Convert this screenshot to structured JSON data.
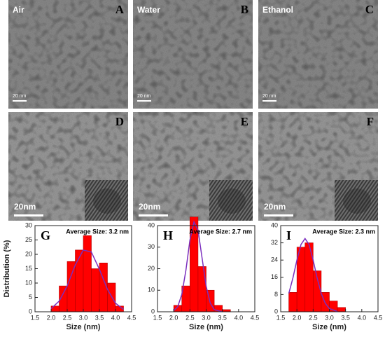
{
  "panels": [
    {
      "label": "Air",
      "letter": "A",
      "scale_bar": "20 nm"
    },
    {
      "label": "Water",
      "letter": "B",
      "scale_bar": "20 nm"
    },
    {
      "label": "Ethanol",
      "letter": "C",
      "scale_bar": "20 nm"
    },
    {
      "letter": "D",
      "scale_bar": "20nm"
    },
    {
      "letter": "E",
      "scale_bar": "20nm"
    },
    {
      "letter": "F",
      "scale_bar": "20nm"
    }
  ],
  "chart_data": [
    {
      "type": "histogram",
      "letter": "G",
      "annotation": "Average Size: 3.2 nm",
      "x_label": "Size (nm)",
      "y_label": "Distribution (%)",
      "bins": [
        2.0,
        2.25,
        2.5,
        2.75,
        3.0,
        3.25,
        3.5,
        3.75,
        4.0,
        4.25
      ],
      "values": [
        2,
        9,
        17.5,
        21.5,
        26.5,
        15,
        17,
        10,
        2
      ],
      "color": "#ff0000",
      "curve": {
        "x": [
          2.0,
          2.25,
          2.5,
          2.75,
          3.0,
          3.25,
          3.5,
          3.75,
          4.0,
          4.25
        ],
        "values": [
          1.1,
          3.7,
          9.0,
          16.3,
          21.5,
          20.8,
          14.8,
          7.8,
          3.0,
          0.8
        ],
        "color": "#7b2fbe"
      },
      "xlim": [
        1.5,
        4.5
      ],
      "xticks": [
        {
          "value": 1.5,
          "label": "1.5"
        },
        {
          "value": 2,
          "label": "2.0"
        },
        {
          "value": 2.5,
          "label": "2.5"
        },
        {
          "value": 3,
          "label": "3.0"
        },
        {
          "value": 3.5,
          "label": "3.5"
        },
        {
          "value": 4,
          "label": "4.0"
        },
        {
          "value": 4.5,
          "label": "4.5"
        }
      ],
      "ylim": [
        0,
        30
      ],
      "yticks": [
        0,
        5,
        10,
        15,
        20,
        25,
        30
      ]
    },
    {
      "type": "histogram",
      "letter": "H",
      "annotation": "Average Size: 2.7 nm",
      "x_label": "Size (nm)",
      "bins": [
        2.0,
        2.25,
        2.5,
        2.75,
        3.0,
        3.25,
        3.5,
        3.75
      ],
      "values": [
        3,
        12,
        44,
        21,
        10,
        3,
        1
      ],
      "color": "#ff0000",
      "curve": {
        "x": [
          2.0,
          2.125,
          2.25,
          2.375,
          2.5,
          2.625,
          2.75,
          2.875,
          3.0,
          3.125,
          3.25,
          3.5
        ],
        "values": [
          0.5,
          2.4,
          8.1,
          19.2,
          33.3,
          41.7,
          37.9,
          24.9,
          11.9,
          4.1,
          1.0,
          0
        ],
        "color": "#7b2fbe"
      },
      "xlim": [
        1.5,
        4.5
      ],
      "xticks": [
        {
          "value": 1.5,
          "label": "1.5"
        },
        {
          "value": 2,
          "label": "2.0"
        },
        {
          "value": 2.5,
          "label": "2.5"
        },
        {
          "value": 3,
          "label": "3.0"
        },
        {
          "value": 3.5,
          "label": "3.5"
        },
        {
          "value": 4,
          "label": "4.0"
        },
        {
          "value": 4.5,
          "label": "4.5"
        }
      ],
      "ylim": [
        0,
        40
      ],
      "yticks": [
        0,
        10,
        20,
        30,
        40
      ]
    },
    {
      "type": "histogram",
      "letter": "I",
      "annotation": "Average Size: 2.3 nm",
      "x_label": "Size (nm)",
      "bins": [
        1.75,
        2.0,
        2.25,
        2.5,
        2.75,
        3.0,
        3.25,
        3.5
      ],
      "values": [
        9,
        30,
        32,
        19,
        9,
        5,
        2
      ],
      "color": "#ff0000",
      "curve": {
        "x": [
          1.75,
          1.875,
          2.0,
          2.125,
          2.25,
          2.375,
          2.5,
          2.625,
          2.75,
          2.875,
          3.0,
          3.25
        ],
        "values": [
          8.5,
          15.6,
          24.0,
          31.2,
          34,
          31.2,
          24.0,
          15.6,
          8.5,
          3.9,
          1.5,
          0.1
        ],
        "color": "#7b2fbe"
      },
      "xlim": [
        1.5,
        4.5
      ],
      "xticks": [
        {
          "value": 1.5,
          "label": "1.5"
        },
        {
          "value": 2,
          "label": "2.0"
        },
        {
          "value": 2.5,
          "label": "2.5"
        },
        {
          "value": 3,
          "label": "3.0"
        },
        {
          "value": 3.5,
          "label": "3.5"
        },
        {
          "value": 4,
          "label": "4.0"
        },
        {
          "value": 4.5,
          "label": "4.5"
        }
      ],
      "ylim": [
        0,
        40
      ],
      "yticks": [
        0,
        8,
        16,
        24,
        32,
        40
      ]
    }
  ]
}
